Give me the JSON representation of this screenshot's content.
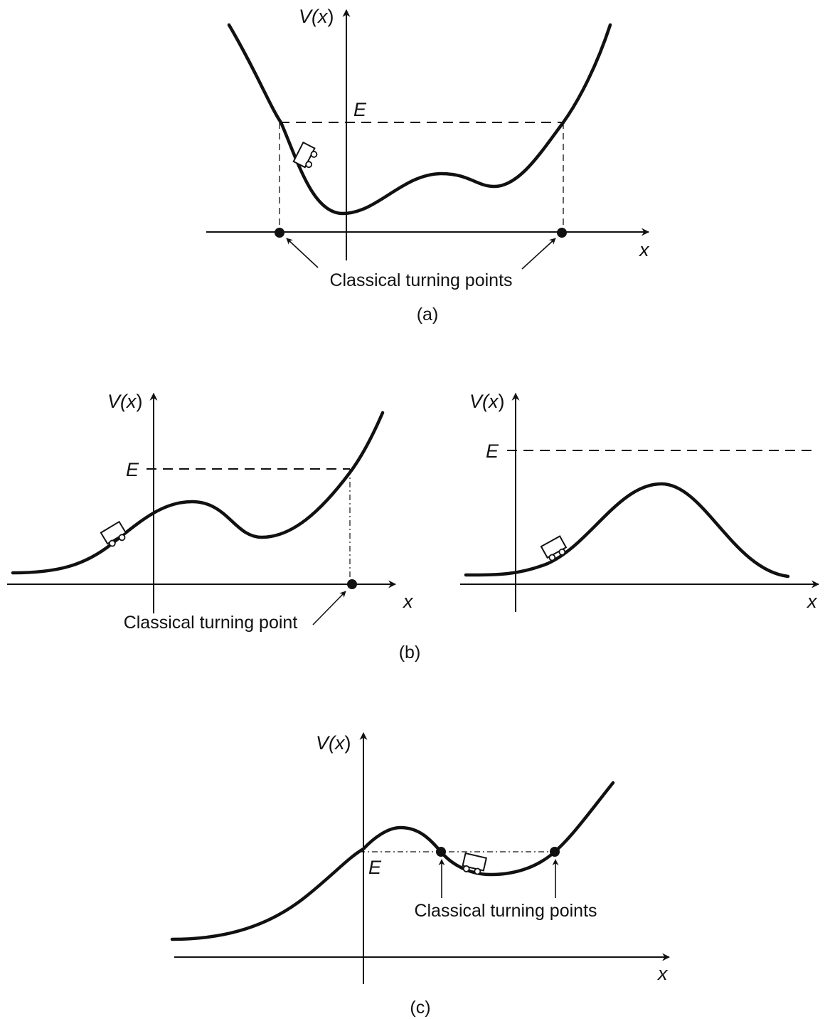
{
  "panels": {
    "a": {
      "caption": "(a)",
      "ylabel_prefix": "V(",
      "ylabel_var": "x",
      "ylabel_suffix": ")",
      "energy_label": "E",
      "xlabel": "x",
      "annotation": "Classical turning points"
    },
    "b_left": {
      "ylabel_prefix": "V(",
      "ylabel_var": "x",
      "ylabel_suffix": ")",
      "energy_label": "E",
      "xlabel": "x",
      "annotation": "Classical turning point"
    },
    "b_right": {
      "ylabel_prefix": "V(",
      "ylabel_var": "x",
      "ylabel_suffix": ")",
      "energy_label": "E",
      "xlabel": "x"
    },
    "b_caption": "(b)",
    "c": {
      "caption": "(c)",
      "ylabel_prefix": "V(",
      "ylabel_var": "x",
      "ylabel_suffix": ")",
      "energy_label": "E",
      "xlabel": "x",
      "annotation": "Classical turning points"
    }
  },
  "colors": {
    "ink": "#111111",
    "background": "#ffffff"
  }
}
